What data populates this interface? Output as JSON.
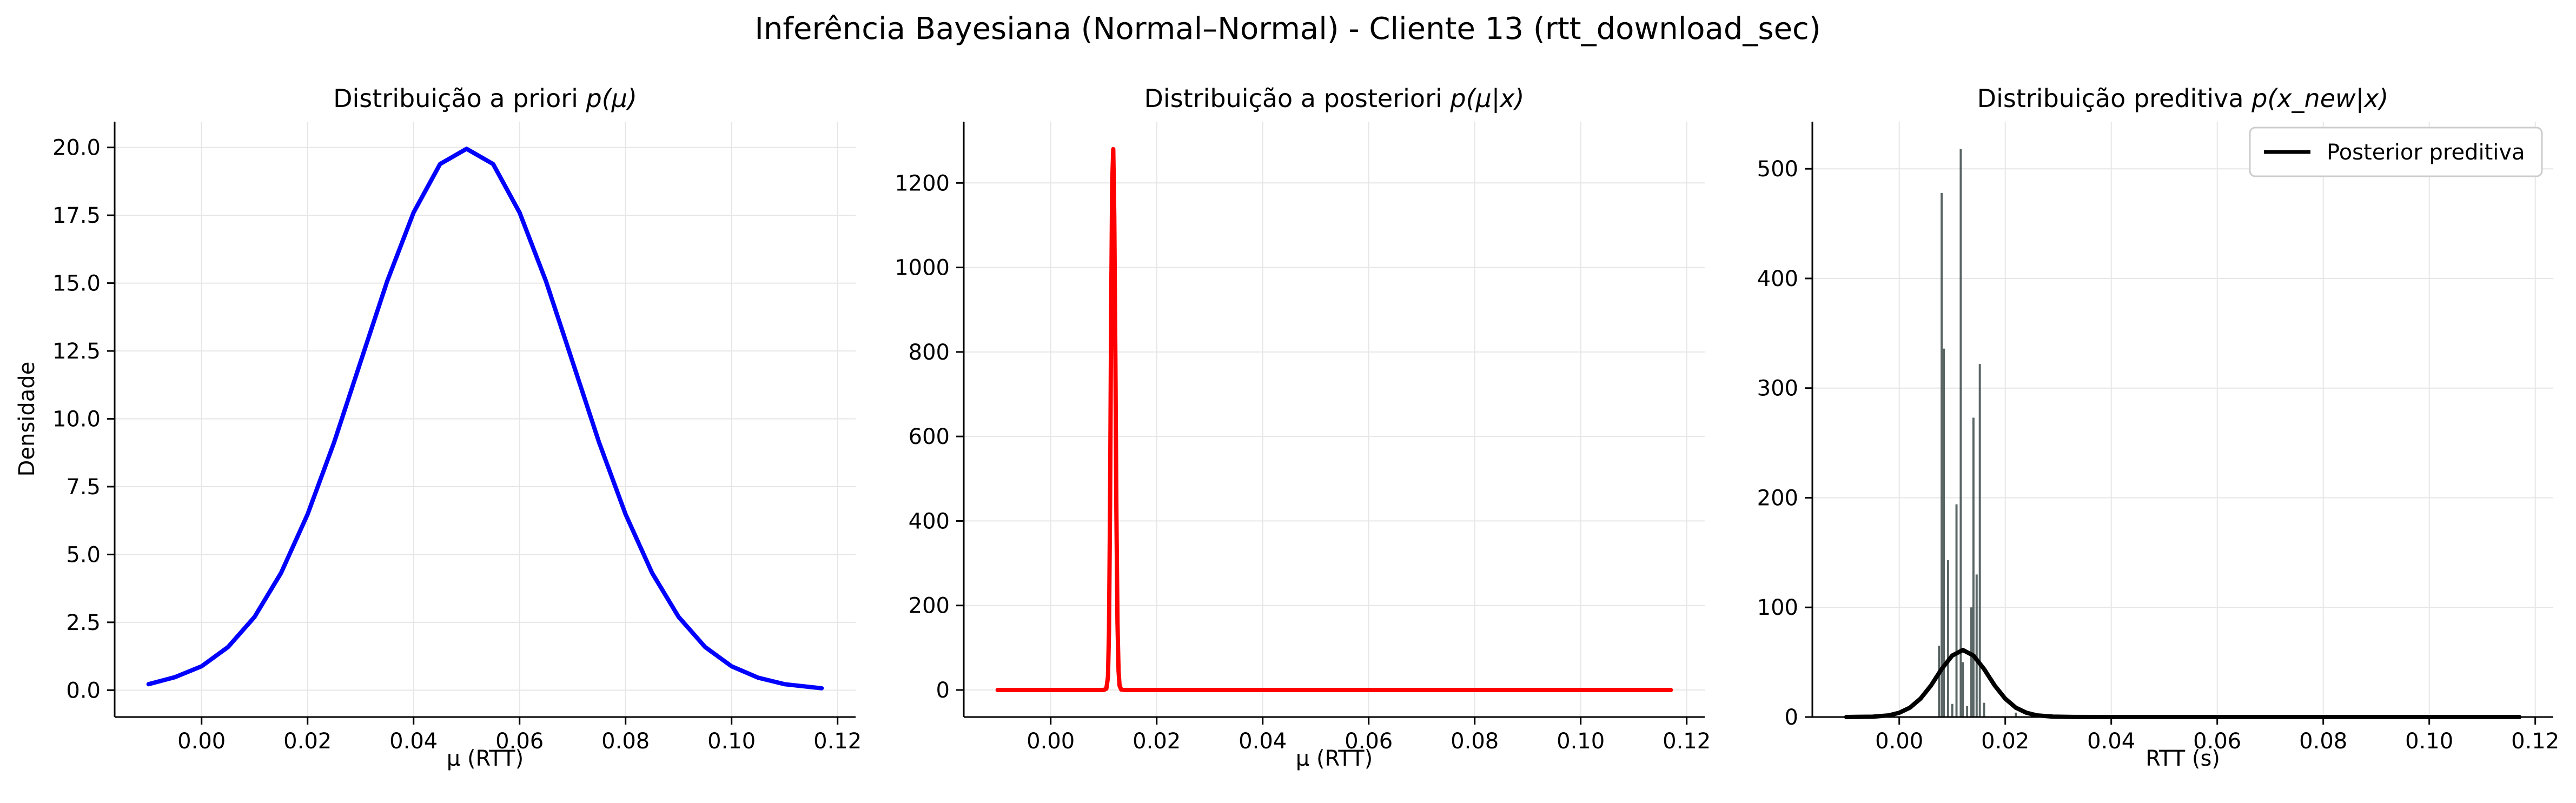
{
  "suptitle": "Inferência Bayesiana (Normal–Normal) - Cliente 13 (rtt_download_sec)",
  "colors": {
    "prior": "#0000ff",
    "posterior": "#ff0000",
    "predictive": "#000000",
    "hist": "#3d4a4a",
    "grid": "#e6e6e6"
  },
  "chart_data": [
    {
      "type": "line",
      "title_main": "Distribuição a priori ",
      "title_math": "p(μ)",
      "xlabel": "μ (RTT)",
      "ylabel": "Densidade",
      "xlim": [
        -0.0164,
        0.1234
      ],
      "ylim": [
        -0.99,
        20.95
      ],
      "xticks": [
        0.0,
        0.02,
        0.04,
        0.06,
        0.08,
        0.1,
        0.12
      ],
      "xtick_labels": [
        "0.00",
        "0.02",
        "0.04",
        "0.06",
        "0.08",
        "0.10",
        "0.12"
      ],
      "yticks": [
        0.0,
        2.5,
        5.0,
        7.5,
        10.0,
        12.5,
        15.0,
        17.5,
        20.0
      ],
      "ytick_labels": [
        "0.0",
        "2.5",
        "5.0",
        "7.5",
        "10.0",
        "12.5",
        "15.0",
        "17.5",
        "20.0"
      ],
      "grid": true,
      "series": [
        {
          "x": [
            -0.01,
            -0.005,
            0.0,
            0.005,
            0.01,
            0.015,
            0.02,
            0.025,
            0.03,
            0.035,
            0.04,
            0.045,
            0.05,
            0.055,
            0.06,
            0.065,
            0.07,
            0.075,
            0.08,
            0.085,
            0.09,
            0.095,
            0.1,
            0.105,
            0.11,
            0.117
          ],
          "y": [
            0.22,
            0.48,
            0.88,
            1.59,
            2.7,
            4.32,
            6.48,
            9.13,
            12.1,
            15.06,
            17.6,
            19.39,
            19.95,
            19.39,
            17.6,
            15.06,
            12.1,
            9.13,
            6.48,
            4.32,
            2.7,
            1.59,
            0.88,
            0.46,
            0.22,
            0.07
          ]
        }
      ]
    },
    {
      "type": "line",
      "title_main": "Distribuição a posteriori ",
      "title_math": "p(μ|x)",
      "xlabel": "μ (RTT)",
      "xlim": [
        -0.0164,
        0.1234
      ],
      "ylim": [
        -64,
        1345
      ],
      "xticks": [
        0.0,
        0.02,
        0.04,
        0.06,
        0.08,
        0.1,
        0.12
      ],
      "xtick_labels": [
        "0.00",
        "0.02",
        "0.04",
        "0.06",
        "0.08",
        "0.10",
        "0.12"
      ],
      "yticks": [
        0,
        200,
        400,
        600,
        800,
        1000,
        1200
      ],
      "ytick_labels": [
        "0",
        "200",
        "400",
        "600",
        "800",
        "1000",
        "1200"
      ],
      "grid": true,
      "series": [
        {
          "x": [
            -0.01,
            0.01,
            0.0105,
            0.0108,
            0.011,
            0.0112,
            0.0114,
            0.0116,
            0.0118,
            0.012,
            0.0122,
            0.0124,
            0.0126,
            0.0128,
            0.013,
            0.0133,
            0.014,
            0.117
          ],
          "y": [
            0,
            0,
            3,
            30,
            136,
            437,
            875,
            1200,
            1280,
            1120,
            790,
            420,
            160,
            45,
            10,
            1,
            0,
            0
          ]
        }
      ]
    },
    {
      "type": "line",
      "title_main": "Distribuição preditiva ",
      "title_math": "p(x_new|x)",
      "xlabel": "RTT (s)",
      "xlim": [
        -0.0164,
        0.1234
      ],
      "ylim": [
        0,
        543
      ],
      "xticks": [
        0.0,
        0.02,
        0.04,
        0.06,
        0.08,
        0.1,
        0.12
      ],
      "xtick_labels": [
        "0.00",
        "0.02",
        "0.04",
        "0.06",
        "0.08",
        "0.10",
        "0.12"
      ],
      "yticks": [
        0,
        100,
        200,
        300,
        400,
        500
      ],
      "ytick_labels": [
        "0",
        "100",
        "200",
        "300",
        "400",
        "500"
      ],
      "grid": true,
      "legend": {
        "label": "Posterior preditiva",
        "placement": "upper right"
      },
      "series": [
        {
          "name": "Posterior preditiva",
          "x": [
            -0.01,
            -0.005,
            -0.002,
            0.0,
            0.002,
            0.004,
            0.006,
            0.008,
            0.01,
            0.012,
            0.014,
            0.016,
            0.018,
            0.02,
            0.022,
            0.024,
            0.026,
            0.029,
            0.033,
            0.04,
            0.06,
            0.117
          ],
          "y": [
            0,
            0.3,
            1.5,
            3.9,
            8.5,
            16.7,
            28.8,
            43.8,
            56.1,
            61.1,
            56.1,
            43.8,
            28.8,
            16.7,
            8.5,
            3.9,
            1.5,
            0.4,
            0.05,
            0,
            0,
            0
          ]
        }
      ],
      "histogram": {
        "bin_width": 0.0004,
        "bins": [
          {
            "x": 0.0075,
            "y": 65
          },
          {
            "x": 0.008,
            "y": 478
          },
          {
            "x": 0.0084,
            "y": 336
          },
          {
            "x": 0.0092,
            "y": 143
          },
          {
            "x": 0.01,
            "y": 12
          },
          {
            "x": 0.0108,
            "y": 194
          },
          {
            "x": 0.0116,
            "y": 518
          },
          {
            "x": 0.012,
            "y": 50
          },
          {
            "x": 0.0128,
            "y": 10
          },
          {
            "x": 0.0136,
            "y": 100
          },
          {
            "x": 0.014,
            "y": 273
          },
          {
            "x": 0.0146,
            "y": 130
          },
          {
            "x": 0.0152,
            "y": 322
          },
          {
            "x": 0.016,
            "y": 13
          },
          {
            "x": 0.022,
            "y": 4
          }
        ]
      }
    }
  ]
}
